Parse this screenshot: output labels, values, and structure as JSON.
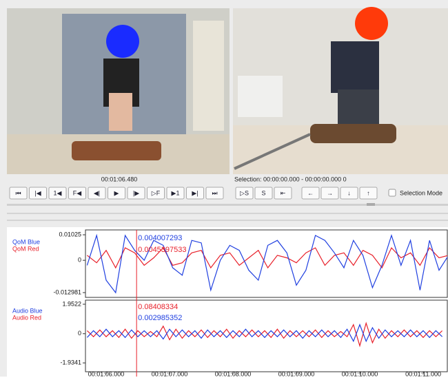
{
  "player": {
    "time": {
      "value": 66.48,
      "label": "00:01:06.480"
    },
    "selection": "Selection: 00:00:00.000 - 00:00:00.000  0",
    "left_buttons": [
      "⏮",
      "|◀",
      "1◀",
      "F◀",
      "◀|",
      "▶",
      "|▶",
      "▷F",
      "▶1",
      "▶|",
      "⏭"
    ],
    "right_buttons": [
      "▷S",
      "S",
      "⇤",
      "←",
      "→",
      "↓",
      "↑"
    ],
    "selection_mode": "Selection Mode"
  },
  "chart_data": [
    {
      "type": "line",
      "x": [
        65.7,
        65.85,
        66.0,
        66.15,
        66.3,
        66.45,
        66.6,
        66.75,
        66.9,
        67.05,
        67.2,
        67.35,
        67.5,
        67.65,
        67.8,
        67.95,
        68.1,
        68.25,
        68.4,
        68.55,
        68.7,
        68.85,
        69.0,
        69.15,
        69.3,
        69.45,
        69.6,
        69.75,
        69.9,
        70.05,
        70.2,
        70.35,
        70.5,
        70.65,
        70.8,
        70.95,
        71.1,
        71.25,
        71.4
      ],
      "series": [
        {
          "name": "QoM Red",
          "color": "#e8202a",
          "values": [
            0.002,
            -0.001,
            0.004,
            -0.003,
            0.005,
            0.003,
            -0.002,
            0.001,
            0.005,
            -0.002,
            -0.001,
            0.003,
            0.004,
            -0.003,
            0.002,
            0.003,
            -0.002,
            0.001,
            0.004,
            -0.003,
            0.002,
            0.001,
            -0.001,
            0.003,
            0.005,
            -0.002,
            0.002,
            0.003,
            -0.002,
            0.004,
            0.002,
            -0.003,
            0.005,
            0.001,
            0.003,
            -0.002,
            0.005,
            0.001,
            0.002
          ]
        },
        {
          "name": "QoM Blue",
          "color": "#1f3fe0",
          "values": [
            -0.002,
            0.01,
            -0.008,
            -0.013,
            0.01,
            0.004,
            0.0,
            0.008,
            0.006,
            -0.003,
            -0.006,
            0.008,
            0.007,
            -0.012,
            0.0,
            0.006,
            0.004,
            -0.004,
            -0.008,
            0.006,
            0.008,
            0.003,
            -0.01,
            -0.004,
            0.01,
            0.008,
            0.003,
            -0.003,
            0.008,
            0.002,
            -0.011,
            -0.002,
            0.01,
            -0.002,
            0.008,
            -0.012,
            0.008,
            -0.004,
            0.002
          ]
        }
      ],
      "annotations": [
        "0.0045397533",
        "0.004007293"
      ],
      "xlim": [
        65.674,
        71.38
      ],
      "ylim": [
        -0.0149,
        0.0122
      ],
      "yticks": [
        -0.012981,
        0,
        0.01025
      ]
    },
    {
      "type": "line",
      "x": [
        65.7,
        65.8,
        65.9,
        66.0,
        66.1,
        66.2,
        66.3,
        66.4,
        66.5,
        66.6,
        66.7,
        66.8,
        66.9,
        67.0,
        67.1,
        67.2,
        67.3,
        67.4,
        67.5,
        67.6,
        67.7,
        67.8,
        67.9,
        68.0,
        68.1,
        68.2,
        68.3,
        68.4,
        68.5,
        68.6,
        68.7,
        68.8,
        68.9,
        69.0,
        69.1,
        69.2,
        69.3,
        69.4,
        69.5,
        69.6,
        69.7,
        69.8,
        69.9,
        70.0,
        70.1,
        70.2,
        70.3,
        70.4,
        70.5,
        70.6,
        70.7,
        70.8,
        70.9,
        71.0,
        71.1,
        71.2,
        71.3
      ],
      "series": [
        {
          "name": "Audio Red",
          "color": "#e8202a",
          "values": [
            0.2,
            -0.2,
            0.25,
            -0.2,
            0.2,
            -0.25,
            0.3,
            -0.3,
            0.2,
            -0.2,
            0.15,
            -0.2,
            0.5,
            -0.4,
            0.3,
            -0.3,
            0.2,
            -0.2,
            0.25,
            -0.25,
            0.2,
            -0.2,
            0.3,
            -0.3,
            0.2,
            -0.2,
            0.25,
            -0.2,
            0.2,
            -0.25,
            0.3,
            -0.3,
            0.2,
            -0.2,
            0.2,
            -0.2,
            0.25,
            -0.25,
            0.2,
            -0.2,
            0.15,
            -0.2,
            0.6,
            -0.8,
            0.7,
            -0.6,
            0.3,
            -0.3,
            0.2,
            -0.2,
            0.25,
            -0.2,
            0.2,
            -0.25,
            0.2,
            -0.2,
            0.2
          ]
        },
        {
          "name": "Audio Blue",
          "color": "#1f3fe0",
          "values": [
            -0.25,
            0.2,
            -0.2,
            0.3,
            -0.2,
            0.2,
            -0.25,
            0.25,
            -0.2,
            0.2,
            -0.2,
            0.2,
            -0.35,
            0.3,
            -0.2,
            0.25,
            -0.2,
            0.2,
            -0.3,
            0.25,
            -0.2,
            0.2,
            -0.25,
            0.2,
            -0.2,
            0.3,
            -0.2,
            0.2,
            -0.25,
            0.2,
            -0.2,
            0.25,
            -0.2,
            0.2,
            -0.3,
            0.2,
            -0.2,
            0.25,
            -0.2,
            0.2,
            -0.25,
            0.3,
            -0.5,
            0.6,
            -0.5,
            0.4,
            -0.3,
            0.25,
            -0.2,
            0.2,
            -0.2,
            0.25,
            -0.2,
            0.2,
            -0.25,
            0.2,
            -0.2
          ]
        }
      ],
      "annotations": [
        "0.08408334",
        "0.002985352"
      ],
      "xlim": [
        65.674,
        71.38
      ],
      "ylim": [
        -2.52,
        2.223
      ],
      "yticks": [
        -1.9341,
        0,
        1.9522
      ],
      "xticks": [
        {
          "value": 66,
          "label": "00:01:06.000"
        },
        {
          "value": 67,
          "label": "00:01:07.000"
        },
        {
          "value": 68,
          "label": "00:01:08.000"
        },
        {
          "value": 69,
          "label": "00:01:09.000"
        },
        {
          "value": 70,
          "label": "00:01:10.000"
        },
        {
          "value": 71,
          "label": "00:01:11.000"
        }
      ]
    }
  ]
}
